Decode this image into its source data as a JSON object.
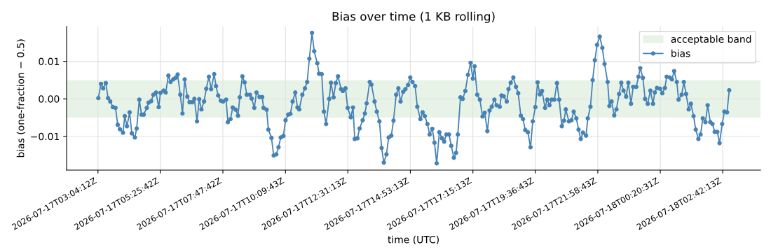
{
  "chart_data": {
    "type": "line",
    "title": "Bias over time (1 KB rolling)",
    "xlabel": "time (UTC)",
    "ylabel": "bias (one-fraction − 0.5)",
    "x": [
      "2026-07-17T03:05",
      "2026-07-17T03:11",
      "2026-07-17T03:16",
      "2026-07-17T03:22",
      "2026-07-17T03:27",
      "2026-07-17T03:32",
      "2026-07-17T03:38",
      "2026-07-17T03:44",
      "2026-07-17T03:49",
      "2026-07-17T03:54",
      "2026-07-17T04:01",
      "2026-07-17T04:05",
      "2026-07-17T04:10",
      "2026-07-17T04:16",
      "2026-07-17T04:21",
      "2026-07-17T04:28",
      "2026-07-17T04:32",
      "2026-07-17T04:38",
      "2026-07-17T04:43",
      "2026-07-17T04:48",
      "2026-07-17T04:55",
      "2026-07-17T04:59",
      "2026-07-17T05:05",
      "2026-07-17T05:10",
      "2026-07-17T05:16",
      "2026-07-17T05:22",
      "2026-07-17T05:26",
      "2026-07-17T05:33",
      "2026-07-17T05:38",
      "2026-07-17T05:44",
      "2026-07-17T05:49",
      "2026-07-17T05:55",
      "2026-07-17T06:00",
      "2026-07-17T06:05",
      "2026-07-17T06:11",
      "2026-07-17T06:16",
      "2026-07-17T06:21",
      "2026-07-17T06:27",
      "2026-07-17T06:32",
      "2026-07-17T06:38",
      "2026-07-17T06:43",
      "2026-07-17T06:49",
      "2026-07-17T06:54",
      "2026-07-17T06:59",
      "2026-07-17T07:05",
      "2026-07-17T07:10",
      "2026-07-17T07:16",
      "2026-07-17T07:21",
      "2026-07-17T07:28",
      "2026-07-17T07:32",
      "2026-07-17T07:37",
      "2026-07-17T07:43",
      "2026-07-17T07:48",
      "2026-07-17T07:55",
      "2026-07-17T07:59",
      "2026-07-17T08:05",
      "2026-07-17T08:10",
      "2026-07-17T08:17",
      "2026-07-17T08:22",
      "2026-07-17T08:26",
      "2026-07-17T08:32",
      "2026-07-17T08:37",
      "2026-07-17T08:42",
      "2026-07-17T08:49",
      "2026-07-17T08:53",
      "2026-07-17T08:59",
      "2026-07-17T09:04",
      "2026-07-17T09:11",
      "2026-07-17T09:17",
      "2026-07-17T09:20",
      "2026-07-17T09:27",
      "2026-07-17T09:31",
      "2026-07-17T09:38",
      "2026-07-17T09:43",
      "2026-07-17T09:49",
      "2026-07-17T09:54",
      "2026-07-17T09:59",
      "2026-07-17T10:05",
      "2026-07-17T10:10",
      "2026-07-17T10:16",
      "2026-07-17T10:21",
      "2026-07-17T10:26",
      "2026-07-17T10:32",
      "2026-07-17T10:37",
      "2026-07-17T10:41",
      "2026-07-17T10:48",
      "2026-07-17T10:54",
      "2026-07-17T10:59",
      "2026-07-17T11:04",
      "2026-07-17T11:10",
      "2026-07-17T11:15",
      "2026-07-17T11:22",
      "2026-07-17T11:26",
      "2026-07-17T11:32",
      "2026-07-17T11:37",
      "2026-07-17T11:42",
      "2026-07-17T11:49",
      "2026-07-17T11:53",
      "2026-07-17T11:59",
      "2026-07-17T12:04",
      "2026-07-17T12:09",
      "2026-07-17T12:16",
      "2026-07-17T12:20",
      "2026-07-17T12:26",
      "2026-07-17T12:31",
      "2026-07-17T12:38",
      "2026-07-17T12:43",
      "2026-07-17T12:47",
      "2026-07-17T12:53",
      "2026-07-17T12:58",
      "2026-07-17T13:05",
      "2026-07-17T13:10",
      "2026-07-17T13:14",
      "2026-07-17T13:21",
      "2026-07-17T13:25",
      "2026-07-17T13:32",
      "2026-07-17T13:37",
      "2026-07-17T13:43",
      "2026-07-17T13:48",
      "2026-07-17T13:53",
      "2026-07-17T13:59",
      "2026-07-17T14:04",
      "2026-07-17T14:10",
      "2026-07-17T14:15",
      "2026-07-17T14:21",
      "2026-07-17T14:26",
      "2026-07-17T14:31",
      "2026-07-17T14:37",
      "2026-07-17T14:42",
      "2026-07-17T14:48",
      "2026-07-17T14:53",
      "2026-07-17T14:58",
      "2026-07-17T15:04",
      "2026-07-17T15:09",
      "2026-07-17T15:16",
      "2026-07-17T15:21",
      "2026-07-17T15:26",
      "2026-07-17T15:32",
      "2026-07-17T15:37",
      "2026-07-17T15:43",
      "2026-07-17T15:48",
      "2026-07-17T15:53",
      "2026-07-17T15:59",
      "2026-07-17T16:05",
      "2026-07-17T16:10",
      "2026-07-17T16:15",
      "2026-07-17T16:21",
      "2026-07-17T16:26",
      "2026-07-17T16:32",
      "2026-07-17T16:37",
      "2026-07-17T16:41",
      "2026-07-17T16:47",
      "2026-07-17T16:52",
      "2026-07-17T16:58",
      "2026-07-17T17:04",
      "2026-07-17T17:10",
      "2026-07-17T17:15",
      "2026-07-17T17:19",
      "2026-07-17T17:25",
      "2026-07-17T17:31",
      "2026-07-17T17:37",
      "2026-07-17T17:42",
      "2026-07-17T17:48",
      "2026-07-17T17:53",
      "2026-07-17T17:58",
      "2026-07-17T18:04",
      "2026-07-17T18:09",
      "2026-07-17T18:16",
      "2026-07-17T18:20",
      "2026-07-17T18:25",
      "2026-07-17T18:32",
      "2026-07-17T18:36",
      "2026-07-17T18:41",
      "2026-07-17T18:47",
      "2026-07-17T18:53",
      "2026-07-17T18:58",
      "2026-07-17T19:04",
      "2026-07-17T19:09",
      "2026-07-17T19:14",
      "2026-07-17T19:20",
      "2026-07-17T19:26",
      "2026-07-17T19:31",
      "2026-07-17T19:37",
      "2026-07-17T19:42",
      "2026-07-17T19:47",
      "2026-07-17T19:52",
      "2026-07-17T19:59",
      "2026-07-17T20:04",
      "2026-07-17T20:09",
      "2026-07-17T20:14",
      "2026-07-17T20:20",
      "2026-07-17T20:26",
      "2026-07-17T20:31",
      "2026-07-17T20:37",
      "2026-07-17T20:42",
      "2026-07-17T20:46",
      "2026-07-17T20:53",
      "2026-07-17T20:59",
      "2026-07-17T21:04",
      "2026-07-17T21:10",
      "2026-07-17T21:15",
      "2026-07-17T21:20",
      "2026-07-17T21:25",
      "2026-07-17T21:32",
      "2026-07-17T21:36",
      "2026-07-17T21:42",
      "2026-07-17T21:47",
      "2026-07-17T21:52",
      "2026-07-17T21:57",
      "2026-07-17T22:03",
      "2026-07-17T22:09",
      "2026-07-17T22:14",
      "2026-07-17T22:21",
      "2026-07-17T22:25",
      "2026-07-17T22:30",
      "2026-07-17T22:36",
      "2026-07-17T22:41",
      "2026-07-17T22:47",
      "2026-07-17T22:52",
      "2026-07-17T22:57",
      "2026-07-17T23:03",
      "2026-07-17T23:08",
      "2026-07-17T23:14",
      "2026-07-17T23:19",
      "2026-07-17T23:26",
      "2026-07-17T23:31",
      "2026-07-17T23:35",
      "2026-07-17T23:41",
      "2026-07-17T23:46",
      "2026-07-17T23:52",
      "2026-07-17T23:58",
      "2026-07-18T00:04",
      "2026-07-18T00:08",
      "2026-07-18T00:13",
      "2026-07-18T00:20",
      "2026-07-18T00:25",
      "2026-07-18T00:31",
      "2026-07-18T00:35",
      "2026-07-18T00:42",
      "2026-07-18T00:47",
      "2026-07-18T00:52",
      "2026-07-18T00:58",
      "2026-07-18T01:02",
      "2026-07-18T01:09",
      "2026-07-18T01:14",
      "2026-07-18T01:19",
      "2026-07-18T01:25",
      "2026-07-18T01:30",
      "2026-07-18T01:36",
      "2026-07-18T01:41",
      "2026-07-18T01:47",
      "2026-07-18T01:52",
      "2026-07-18T01:57",
      "2026-07-18T02:03",
      "2026-07-18T02:08",
      "2026-07-18T02:14",
      "2026-07-18T02:19",
      "2026-07-18T02:24",
      "2026-07-18T02:30",
      "2026-07-18T02:35",
      "2026-07-18T02:41",
      "2026-07-18T02:46",
      "2026-07-18T02:52",
      "2026-07-18T02:57"
    ],
    "series": [
      {
        "name": "bias",
        "color": "#4682b4",
        "values": [
          0.0002,
          0.004,
          0.0028,
          0.0042,
          0.0002,
          -0.0007,
          -0.0022,
          -0.0024,
          -0.0069,
          -0.0081,
          -0.009,
          -0.0046,
          -0.0073,
          -0.0036,
          -0.0092,
          -0.0103,
          -0.0079,
          -0.0002,
          -0.0042,
          -0.0042,
          -0.0024,
          -0.001,
          -0.0006,
          0.0011,
          0.0017,
          -0.0022,
          0.0016,
          0.0022,
          0.0017,
          0.0062,
          0.0045,
          0.0052,
          0.0056,
          0.0065,
          0.0011,
          -0.0039,
          0.0052,
          0.0006,
          -0.0009,
          -0.0009,
          0.0,
          -0.006,
          -0.0001,
          -0.0028,
          -0.0007,
          0.0027,
          0.0059,
          0.0026,
          0.0066,
          0.0034,
          0.0009,
          -0.0005,
          -0.0007,
          -0.0002,
          -0.0062,
          -0.0054,
          -0.0023,
          -0.0029,
          -0.0045,
          0.0004,
          0.006,
          0.0044,
          0.0011,
          0.0011,
          0.0001,
          -0.0024,
          0.0017,
          0.0005,
          0.0005,
          -0.0024,
          -0.0029,
          -0.0082,
          -0.0104,
          -0.0151,
          -0.0148,
          -0.0129,
          -0.0103,
          -0.0099,
          -0.0057,
          -0.0042,
          -0.004,
          -0.0007,
          0.0017,
          -0.0023,
          -0.0028,
          0.0011,
          0.0028,
          0.0045,
          0.0107,
          0.0176,
          0.0127,
          0.0095,
          0.0067,
          0.0066,
          -0.0034,
          -0.0067,
          0.0,
          0.0043,
          0.0004,
          0.0042,
          0.006,
          0.0026,
          0.0021,
          0.0028,
          -0.0024,
          -0.0049,
          -0.0023,
          -0.0107,
          -0.0105,
          -0.0079,
          -0.0057,
          -0.0039,
          -0.0012,
          0.0045,
          0.0038,
          -0.0007,
          -0.0034,
          -0.006,
          -0.0131,
          -0.017,
          -0.0148,
          -0.0103,
          -0.0098,
          -0.0058,
          0.0011,
          0.0028,
          -0.0007,
          0.0019,
          0.0026,
          0.0037,
          0.0057,
          0.0045,
          0.0034,
          -0.0021,
          -0.0054,
          -0.0036,
          -0.0046,
          -0.0067,
          -0.0095,
          -0.008,
          -0.0117,
          -0.0172,
          -0.0089,
          -0.0105,
          -0.0114,
          -0.0095,
          -0.0095,
          -0.0125,
          -0.0157,
          -0.0144,
          -0.0095,
          0.0004,
          0.0,
          0.0021,
          0.0064,
          0.0096,
          0.0054,
          0.0087,
          0.0011,
          -0.0002,
          -0.0047,
          -0.0037,
          -0.0086,
          -0.0031,
          -0.0021,
          -0.0002,
          -0.0017,
          -0.0021,
          0.0009,
          0.0007,
          -0.0007,
          0.0026,
          0.0043,
          0.0057,
          0.0032,
          0.0015,
          -0.0045,
          -0.0054,
          -0.0083,
          -0.0089,
          -0.0129,
          -0.006,
          -0.0022,
          0.0044,
          0.0012,
          0.0021,
          -0.0024,
          -0.0002,
          -0.0017,
          -0.0002,
          -0.0002,
          0.0042,
          -0.0002,
          -0.0073,
          -0.0058,
          -0.0028,
          -0.006,
          -0.0057,
          -0.0034,
          -0.0052,
          -0.0082,
          -0.0107,
          -0.009,
          -0.0098,
          -0.0052,
          -0.0021,
          0.005,
          0.0103,
          0.0144,
          0.0166,
          0.0136,
          0.0093,
          0.0045,
          -0.0019,
          -0.0007,
          -0.0044,
          -0.0028,
          0.0013,
          0.0043,
          0.0022,
          0.0006,
          0.0043,
          -0.0013,
          0.0032,
          0.0032,
          0.0059,
          0.0082,
          0.0056,
          0.0,
          -0.0013,
          0.0022,
          -0.0013,
          0.0017,
          0.0029,
          0.0027,
          0.0015,
          0.0029,
          0.0059,
          0.0057,
          0.0052,
          0.0074,
          0.0045,
          -0.0002,
          0.0011,
          0.0045,
          0.0013,
          -0.0028,
          -0.0013,
          -0.0046,
          -0.0082,
          -0.0107,
          -0.0095,
          -0.0052,
          -0.0062,
          -0.0017,
          -0.0062,
          -0.0067,
          -0.0088,
          -0.0088,
          -0.0118,
          -0.0067,
          -0.0034,
          -0.0036,
          0.0023
        ]
      }
    ],
    "bands": [
      {
        "axis": "y",
        "from": -0.005,
        "to": 0.005,
        "label": "acceptable band",
        "color": "#e8f3e8"
      }
    ],
    "xlim": [
      "2026-07-17T01:53",
      "2026-07-18T04:08"
    ],
    "xticks": [
      {
        "value": "2026-07-17T03:04:12",
        "label": "2026-07-17T03:04:12Z"
      },
      {
        "value": "2026-07-17T05:25:42",
        "label": "2026-07-17T05:25:42Z"
      },
      {
        "value": "2026-07-17T07:47:42",
        "label": "2026-07-17T07:47:42Z"
      },
      {
        "value": "2026-07-17T10:09:43",
        "label": "2026-07-17T10:09:43Z"
      },
      {
        "value": "2026-07-17T12:31:13",
        "label": "2026-07-17T12:31:13Z"
      },
      {
        "value": "2026-07-17T14:53:13",
        "label": "2026-07-17T14:53:13Z"
      },
      {
        "value": "2026-07-17T17:15:13",
        "label": "2026-07-17T17:15:13Z"
      },
      {
        "value": "2026-07-17T19:36:43",
        "label": "2026-07-17T19:36:43Z"
      },
      {
        "value": "2026-07-17T21:58:43",
        "label": "2026-07-17T21:58:43Z"
      },
      {
        "value": "2026-07-18T00:20:31",
        "label": "2026-07-18T00:20:31Z"
      },
      {
        "value": "2026-07-18T02:42:13",
        "label": "2026-07-18T02:42:13Z"
      }
    ],
    "ylim": [
      -0.019,
      0.0193
    ],
    "yticks": [
      {
        "value": -0.01,
        "label": "−0.01"
      },
      {
        "value": 0.0,
        "label": "0.00"
      },
      {
        "value": 0.01,
        "label": "0.01"
      }
    ],
    "grid": true,
    "legend": "top right",
    "marker": "circle",
    "line_style": "solid"
  }
}
